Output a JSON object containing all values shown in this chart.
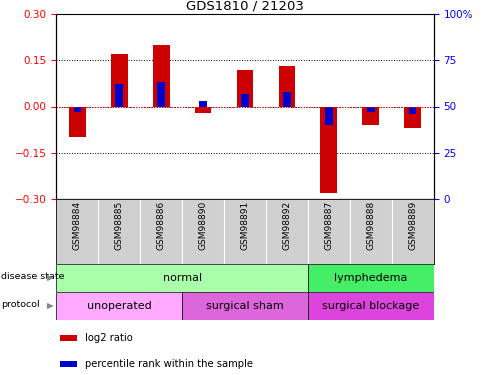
{
  "title": "GDS1810 / 21203",
  "samples": [
    "GSM98884",
    "GSM98885",
    "GSM98886",
    "GSM98890",
    "GSM98891",
    "GSM98892",
    "GSM98887",
    "GSM98888",
    "GSM98889"
  ],
  "log2_ratio": [
    -0.1,
    0.17,
    0.2,
    -0.02,
    0.12,
    0.13,
    -0.28,
    -0.06,
    -0.07
  ],
  "percentile_rank": [
    47,
    62,
    63,
    53,
    57,
    58,
    40,
    47,
    46
  ],
  "ylim_left": [
    -0.3,
    0.3
  ],
  "ylim_right": [
    0,
    100
  ],
  "yticks_left": [
    -0.3,
    -0.15,
    0,
    0.15,
    0.3
  ],
  "yticks_right": [
    0,
    25,
    50,
    75,
    100
  ],
  "bar_color_red": "#cc0000",
  "bar_color_blue": "#0000cc",
  "disease_state_groups": [
    {
      "label": "normal",
      "start": 0,
      "end": 6,
      "color": "#aaffaa"
    },
    {
      "label": "lymphedema",
      "start": 6,
      "end": 9,
      "color": "#44ee66"
    }
  ],
  "protocol_groups": [
    {
      "label": "unoperated",
      "start": 0,
      "end": 3,
      "color": "#ffaaff"
    },
    {
      "label": "surgical sham",
      "start": 3,
      "end": 6,
      "color": "#dd66dd"
    },
    {
      "label": "surgical blockage",
      "start": 6,
      "end": 9,
      "color": "#dd44dd"
    }
  ],
  "legend_items": [
    {
      "label": "log2 ratio",
      "color": "#cc0000"
    },
    {
      "label": "percentile rank within the sample",
      "color": "#0000cc"
    }
  ],
  "tick_label_area_color": "#d0d0d0",
  "bar_width": 0.4,
  "percentile_bar_width": 0.18
}
